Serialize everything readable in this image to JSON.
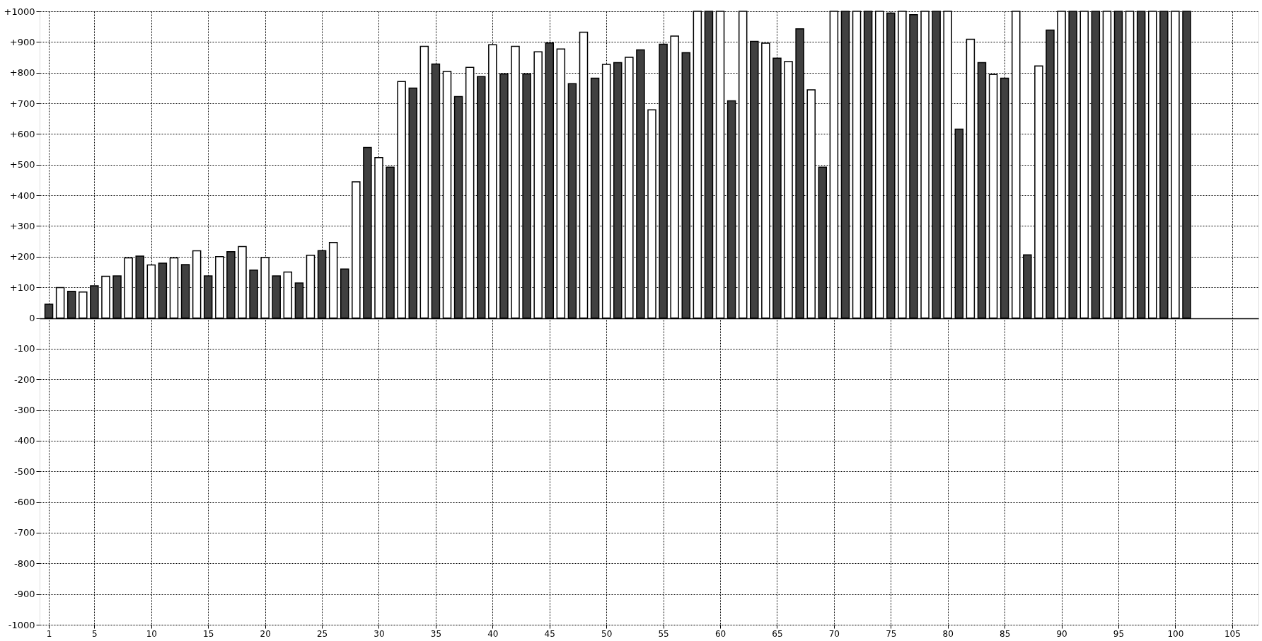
{
  "chart_data": {
    "type": "bar",
    "grid": true,
    "xlim": [
      0.5,
      107
    ],
    "xticks": [
      1,
      5,
      10,
      15,
      20,
      25,
      30,
      35,
      40,
      45,
      50,
      55,
      60,
      65,
      70,
      75,
      80,
      85,
      90,
      95,
      100,
      105
    ],
    "ylim": [
      -1000,
      1000
    ],
    "yticks": [
      {
        "value": -1000,
        "label": "-1000"
      },
      {
        "value": -900,
        "label": "-900"
      },
      {
        "value": -800,
        "label": "-800"
      },
      {
        "value": -700,
        "label": "-700"
      },
      {
        "value": -600,
        "label": "-600"
      },
      {
        "value": -500,
        "label": "-500"
      },
      {
        "value": -400,
        "label": "-400"
      },
      {
        "value": -300,
        "label": "-300"
      },
      {
        "value": -200,
        "label": "-200"
      },
      {
        "value": -100,
        "label": "-100"
      },
      {
        "value": 0,
        "label": "0"
      },
      {
        "value": 100,
        "label": "+100"
      },
      {
        "value": 200,
        "label": "+200"
      },
      {
        "value": 300,
        "label": "+300"
      },
      {
        "value": 400,
        "label": "+400"
      },
      {
        "value": 500,
        "label": "+500"
      },
      {
        "value": 600,
        "label": "+600"
      },
      {
        "value": 700,
        "label": "+700"
      },
      {
        "value": 800,
        "label": "+800"
      },
      {
        "value": 900,
        "label": "+900"
      },
      {
        "value": 1000,
        "label": "+1000"
      }
    ],
    "series": [
      {
        "color": "#404040",
        "x": [
          1,
          3,
          5,
          7,
          9,
          11,
          13,
          15,
          17,
          19,
          21,
          23,
          25,
          27,
          29,
          31,
          33,
          35,
          37,
          39,
          41,
          43,
          45,
          47,
          49,
          51,
          53,
          55,
          57,
          59,
          61,
          63,
          65,
          67,
          69,
          71,
          73,
          75,
          77,
          79,
          81,
          83,
          85,
          87,
          89,
          91,
          93,
          95,
          97,
          99,
          101
        ],
        "values": [
          45,
          87,
          105,
          137,
          202,
          179,
          174,
          137,
          216,
          156,
          137,
          114,
          220,
          160,
          556,
          492,
          750,
          828,
          722,
          787,
          796,
          796,
          897,
          764,
          782,
          833,
          874,
          893,
          865,
          1000,
          708,
          902,
          847,
          943,
          492,
          1000,
          1000,
          994,
          989,
          1000,
          616,
          833,
          782,
          206,
          939,
          1000,
          1000,
          1000,
          1000,
          1000,
          1000
        ]
      },
      {
        "color": "#ffffff",
        "x": [
          2,
          4,
          6,
          8,
          10,
          12,
          14,
          16,
          18,
          20,
          22,
          24,
          26,
          28,
          30,
          32,
          34,
          36,
          38,
          40,
          42,
          44,
          46,
          48,
          50,
          52,
          54,
          56,
          58,
          60,
          62,
          64,
          66,
          68,
          70,
          72,
          74,
          76,
          78,
          80,
          82,
          84,
          86,
          88,
          90,
          92,
          94,
          96,
          98,
          100
        ],
        "values": [
          99,
          85,
          136,
          196,
          173,
          196,
          219,
          200,
          233,
          197,
          150,
          205,
          246,
          444,
          523,
          771,
          886,
          804,
          817,
          891,
          886,
          868,
          877,
          932,
          827,
          850,
          679,
          919,
          1000,
          1000,
          1000,
          896,
          836,
          744,
          1000,
          1000,
          1000,
          1000,
          1000,
          1000,
          909,
          794,
          1000,
          822,
          1000,
          1000,
          1000,
          1000,
          1000,
          1000
        ]
      }
    ]
  }
}
